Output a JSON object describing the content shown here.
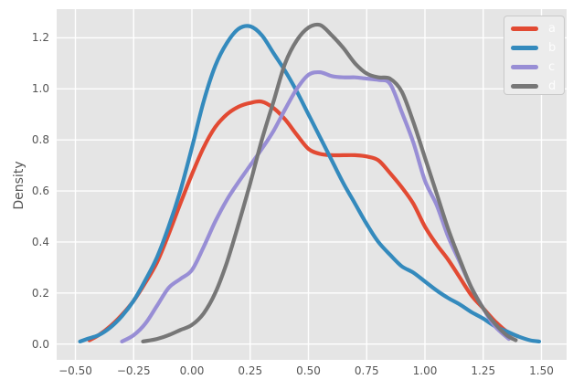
{
  "figure": {
    "title": "",
    "ylabel": "Density",
    "background": "#FFFFFF",
    "plot_background": "#E5E5E5",
    "grid_color": "#FFFFFF",
    "text_color": "#555555"
  },
  "legend": {
    "position": "upper right",
    "label_color": "#FDFDFD",
    "items": [
      {
        "label": "a",
        "color": "#E24A33"
      },
      {
        "label": "b",
        "color": "#348ABD"
      },
      {
        "label": "c",
        "color": "#988ED5"
      },
      {
        "label": "d",
        "color": "#777777"
      }
    ]
  },
  "chart_data": {
    "type": "line",
    "subtype": "kde-density",
    "title": "",
    "xlabel": "",
    "ylabel": "Density",
    "grid": true,
    "legend_position": "upper right",
    "xlim": [
      -0.58,
      1.61
    ],
    "ylim": [
      -0.06,
      1.31
    ],
    "x_ticks": [
      {
        "v": -0.5,
        "label": "−0.50"
      },
      {
        "v": -0.25,
        "label": "−0.25"
      },
      {
        "v": 0.0,
        "label": "0.00"
      },
      {
        "v": 0.25,
        "label": "0.25"
      },
      {
        "v": 0.5,
        "label": "0.50"
      },
      {
        "v": 0.75,
        "label": "0.75"
      },
      {
        "v": 1.0,
        "label": "1.00"
      },
      {
        "v": 1.25,
        "label": "1.25"
      },
      {
        "v": 1.5,
        "label": "1.50"
      }
    ],
    "y_ticks": [
      {
        "v": 0.0,
        "label": "0.0"
      },
      {
        "v": 0.2,
        "label": "0.2"
      },
      {
        "v": 0.4,
        "label": "0.4"
      },
      {
        "v": 0.6,
        "label": "0.6"
      },
      {
        "v": 0.8,
        "label": "0.8"
      },
      {
        "v": 1.0,
        "label": "1.0"
      },
      {
        "v": 1.2,
        "label": "1.2"
      }
    ],
    "series": [
      {
        "name": "a",
        "color": "#E24A33",
        "line_width": 4.2,
        "x": [
          -0.44,
          -0.4,
          -0.35,
          -0.3,
          -0.25,
          -0.2,
          -0.15,
          -0.1,
          -0.05,
          0.0,
          0.05,
          0.1,
          0.15,
          0.2,
          0.25,
          0.3,
          0.35,
          0.4,
          0.45,
          0.5,
          0.55,
          0.6,
          0.65,
          0.7,
          0.75,
          0.8,
          0.85,
          0.9,
          0.95,
          1.0,
          1.05,
          1.1,
          1.15,
          1.2,
          1.25,
          1.3,
          1.35,
          1.4
        ],
        "y": [
          0.015,
          0.035,
          0.07,
          0.115,
          0.17,
          0.24,
          0.32,
          0.43,
          0.55,
          0.665,
          0.77,
          0.85,
          0.9,
          0.93,
          0.945,
          0.95,
          0.925,
          0.88,
          0.82,
          0.765,
          0.745,
          0.74,
          0.74,
          0.74,
          0.735,
          0.72,
          0.67,
          0.615,
          0.55,
          0.46,
          0.39,
          0.33,
          0.26,
          0.19,
          0.14,
          0.09,
          0.05,
          0.03
        ]
      },
      {
        "name": "b",
        "color": "#348ABD",
        "line_width": 4.2,
        "x": [
          -0.48,
          -0.45,
          -0.4,
          -0.35,
          -0.3,
          -0.25,
          -0.2,
          -0.15,
          -0.1,
          -0.05,
          0.0,
          0.05,
          0.1,
          0.15,
          0.2,
          0.25,
          0.3,
          0.35,
          0.4,
          0.45,
          0.5,
          0.55,
          0.6,
          0.65,
          0.7,
          0.75,
          0.8,
          0.85,
          0.9,
          0.95,
          1.0,
          1.05,
          1.1,
          1.15,
          1.2,
          1.25,
          1.3,
          1.35,
          1.4,
          1.45,
          1.49
        ],
        "y": [
          0.01,
          0.02,
          0.035,
          0.065,
          0.11,
          0.17,
          0.25,
          0.34,
          0.46,
          0.6,
          0.77,
          0.95,
          1.09,
          1.18,
          1.235,
          1.245,
          1.21,
          1.14,
          1.07,
          0.99,
          0.9,
          0.81,
          0.72,
          0.63,
          0.55,
          0.47,
          0.4,
          0.35,
          0.305,
          0.28,
          0.245,
          0.21,
          0.18,
          0.155,
          0.125,
          0.1,
          0.07,
          0.05,
          0.03,
          0.015,
          0.01
        ]
      },
      {
        "name": "c",
        "color": "#988ED5",
        "line_width": 4.2,
        "x": [
          -0.3,
          -0.25,
          -0.2,
          -0.15,
          -0.1,
          -0.05,
          0.0,
          0.05,
          0.1,
          0.15,
          0.2,
          0.25,
          0.3,
          0.35,
          0.4,
          0.45,
          0.5,
          0.55,
          0.6,
          0.65,
          0.7,
          0.75,
          0.8,
          0.85,
          0.9,
          0.95,
          1.0,
          1.05,
          1.1,
          1.15,
          1.2,
          1.25,
          1.3,
          1.36
        ],
        "y": [
          0.01,
          0.035,
          0.08,
          0.15,
          0.22,
          0.255,
          0.29,
          0.38,
          0.48,
          0.565,
          0.635,
          0.7,
          0.765,
          0.835,
          0.92,
          1.0,
          1.055,
          1.065,
          1.05,
          1.045,
          1.045,
          1.04,
          1.035,
          1.02,
          0.91,
          0.79,
          0.64,
          0.545,
          0.42,
          0.32,
          0.22,
          0.14,
          0.07,
          0.02
        ]
      },
      {
        "name": "d",
        "color": "#777777",
        "line_width": 4.2,
        "x": [
          -0.21,
          -0.15,
          -0.1,
          -0.05,
          0.0,
          0.05,
          0.1,
          0.15,
          0.2,
          0.25,
          0.3,
          0.35,
          0.4,
          0.45,
          0.5,
          0.55,
          0.6,
          0.65,
          0.7,
          0.75,
          0.8,
          0.85,
          0.9,
          0.95,
          1.0,
          1.05,
          1.1,
          1.15,
          1.2,
          1.25,
          1.3,
          1.35,
          1.39
        ],
        "y": [
          0.01,
          0.02,
          0.035,
          0.055,
          0.075,
          0.12,
          0.2,
          0.32,
          0.47,
          0.63,
          0.8,
          0.95,
          1.1,
          1.19,
          1.24,
          1.25,
          1.21,
          1.16,
          1.1,
          1.06,
          1.045,
          1.04,
          0.99,
          0.87,
          0.73,
          0.59,
          0.45,
          0.33,
          0.22,
          0.14,
          0.08,
          0.035,
          0.015
        ]
      }
    ]
  }
}
